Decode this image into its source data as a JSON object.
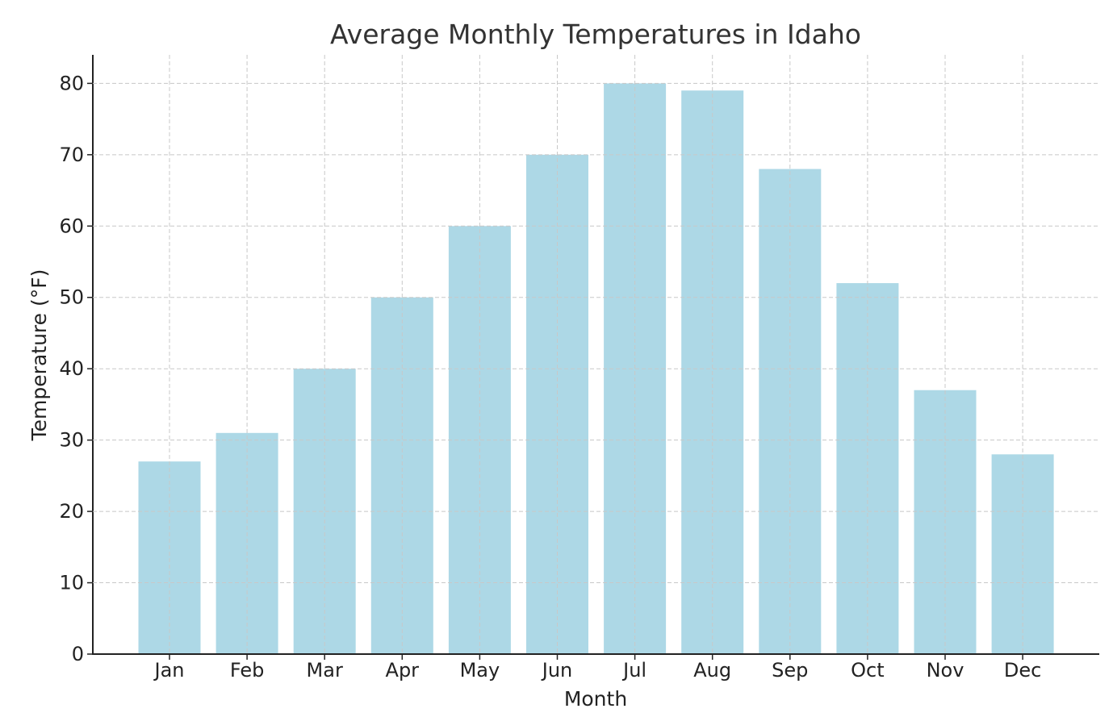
{
  "chart_data": {
    "type": "bar",
    "title": "Average Monthly Temperatures in Idaho",
    "xlabel": "Month",
    "ylabel": "Temperature (°F)",
    "categories": [
      "Jan",
      "Feb",
      "Mar",
      "Apr",
      "May",
      "Jun",
      "Jul",
      "Aug",
      "Sep",
      "Oct",
      "Nov",
      "Dec"
    ],
    "values": [
      27,
      31,
      40,
      50,
      60,
      70,
      80,
      79,
      68,
      52,
      37,
      28
    ],
    "ylim": [
      0,
      84
    ],
    "yticks": [
      0,
      10,
      20,
      30,
      40,
      50,
      60,
      70,
      80
    ],
    "grid": true,
    "legend": "none",
    "bar_color": "#ADD8E6"
  }
}
